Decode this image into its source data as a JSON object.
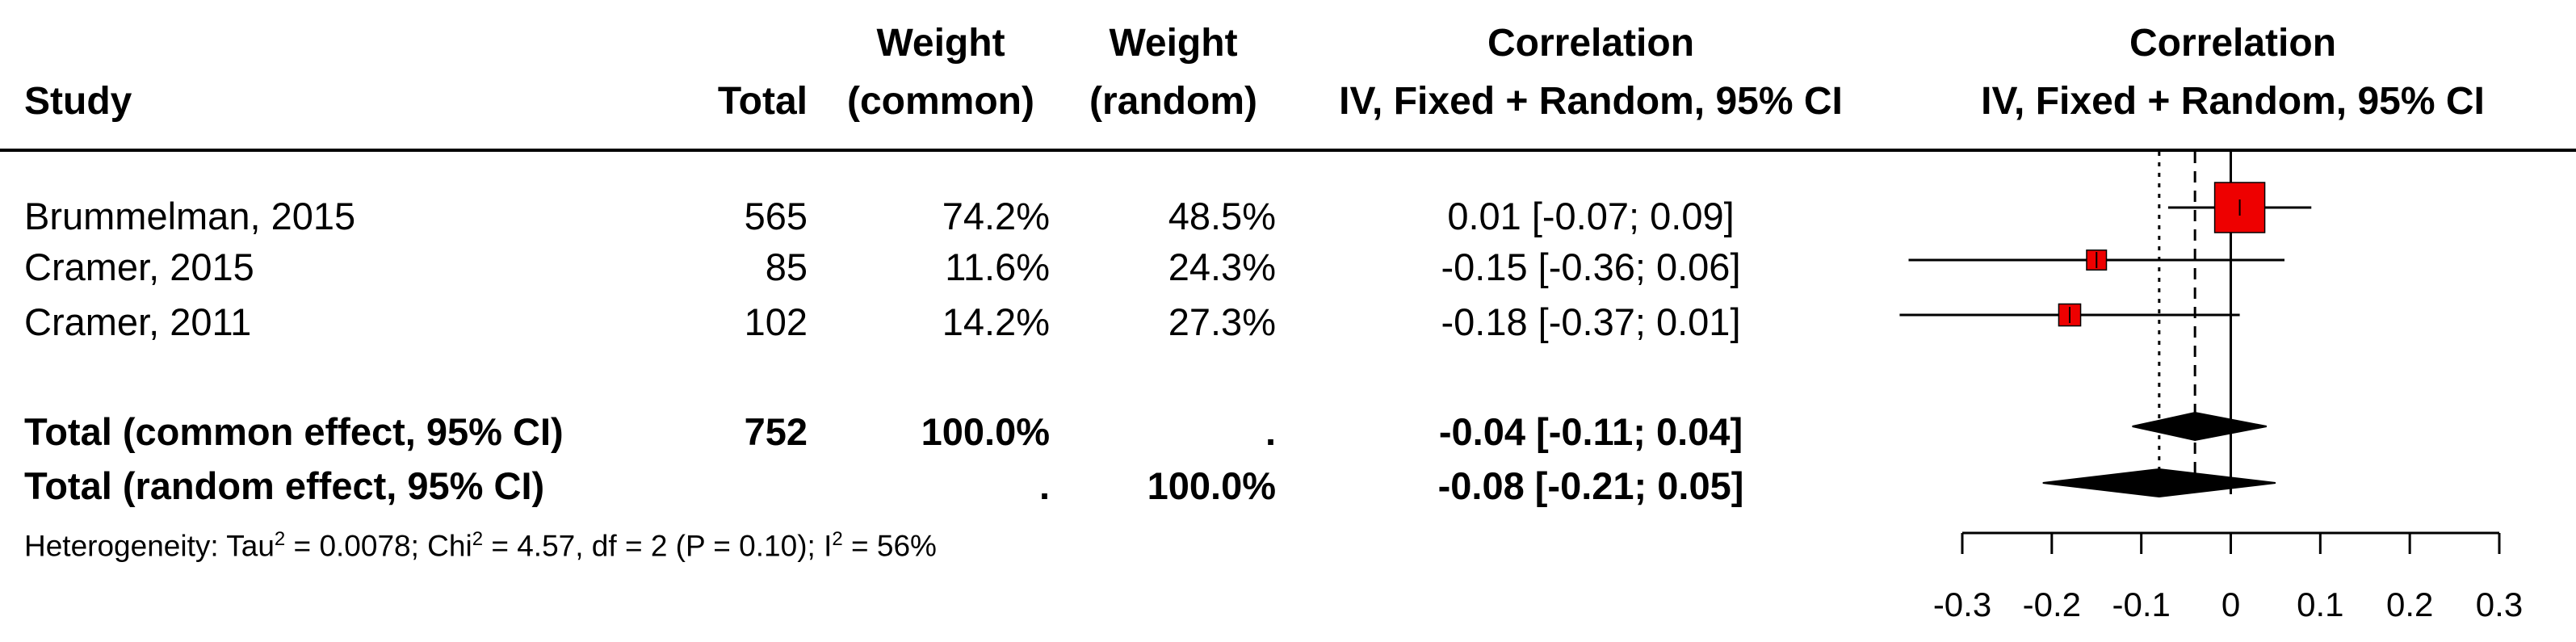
{
  "header": {
    "study": "Study",
    "total": "Total",
    "weight_common_top": "Weight",
    "weight_common_bottom": "(common)",
    "weight_random_top": "Weight",
    "weight_random_bottom": "(random)",
    "corr_top": "Correlation",
    "corr_bottom": "IV, Fixed + Random, 95% CI",
    "plot_top": "Correlation",
    "plot_bottom": "IV, Fixed + Random, 95% CI"
  },
  "studies": [
    {
      "name": "Brummelman, 2015",
      "total": "565",
      "w_common": "74.2%",
      "w_random": "48.5%",
      "ci_text": "0.01 [-0.07; 0.09]"
    },
    {
      "name": "Cramer, 2015",
      "total": "85",
      "w_common": "11.6%",
      "w_random": "24.3%",
      "ci_text": "-0.15 [-0.36; 0.06]"
    },
    {
      "name": "Cramer, 2011",
      "total": "102",
      "w_common": "14.2%",
      "w_random": "27.3%",
      "ci_text": "-0.18 [-0.37; 0.01]"
    }
  ],
  "summary": {
    "common": {
      "label": "Total (common effect, 95% CI)",
      "total": "752",
      "w_common": "100.0%",
      "w_random": ".",
      "ci_text": "-0.04 [-0.11; 0.04]"
    },
    "random": {
      "label": "Total (random effect, 95% CI)",
      "total": "",
      "w_common": ".",
      "w_random": "100.0%",
      "ci_text": "-0.08 [-0.21; 0.05]"
    }
  },
  "heterogeneity": {
    "prefix": "Heterogeneity: Tau",
    "tau2_sup": "2",
    "tau2_value": " = 0.0078; Chi",
    "chi2_sup": "2",
    "chi2_value": " = 4.57, df = 2 (P = 0.10); I",
    "i2_sup": "2",
    "i2_value": " = 56%"
  },
  "colors": {
    "square": "#ee0000",
    "line": "#000000"
  },
  "chart_data": {
    "type": "forest",
    "xlim": [
      -0.3,
      0.3
    ],
    "ticks": [
      -0.3,
      -0.2,
      -0.1,
      0,
      0.1,
      0.2,
      0.3
    ],
    "tick_labels": [
      "-0.3",
      "-0.2",
      "-0.1",
      "0",
      "0.1",
      "0.2",
      "0.3"
    ],
    "studies": [
      {
        "est": 0.01,
        "lower": -0.07,
        "upper": 0.09,
        "weight_common": 74.2
      },
      {
        "est": -0.15,
        "lower": -0.36,
        "upper": 0.06,
        "weight_common": 11.6
      },
      {
        "est": -0.18,
        "lower": -0.37,
        "upper": 0.01,
        "weight_common": 14.2
      }
    ],
    "common": {
      "est": -0.04,
      "lower": -0.11,
      "upper": 0.04
    },
    "random": {
      "est": -0.08,
      "lower": -0.21,
      "upper": 0.05
    },
    "null_line": 0,
    "common_line": -0.04,
    "random_line": -0.08
  }
}
